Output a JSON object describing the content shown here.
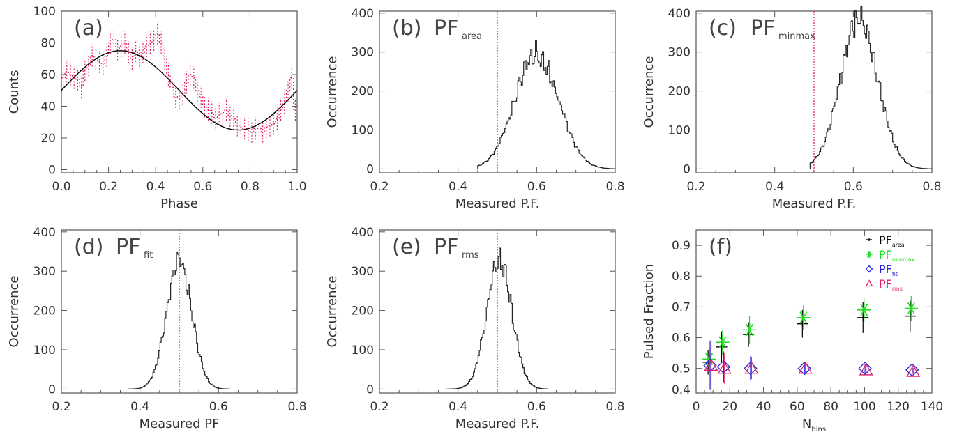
{
  "colors": {
    "data": "#e0205a",
    "fit": "#000000",
    "axis": "#555555",
    "green": "#22dd22",
    "blue": "#2222dd",
    "magenta": "#e0206a",
    "black": "#000000"
  },
  "chart_data": [
    {
      "id": "a",
      "type": "line",
      "label": "(a)",
      "xlabel": "Phase",
      "ylabel": "Counts",
      "xlim": [
        0.0,
        1.0
      ],
      "ylim": [
        -2,
        100
      ],
      "xticks": [
        "0.0",
        "0.2",
        "0.4",
        "0.6",
        "0.8",
        "1.0"
      ],
      "yticks": [
        "0",
        "20",
        "40",
        "60",
        "80",
        "100"
      ],
      "xtick_values": [
        0.0,
        0.2,
        0.4,
        0.6,
        0.8,
        1.0
      ],
      "ytick_values": [
        0,
        20,
        40,
        60,
        80,
        100
      ],
      "fit_curve": {
        "mean": 50,
        "amplitude": 25,
        "peak_phase": 0.25
      },
      "series": [
        {
          "style": "dotted-step",
          "values": [
            58,
            62,
            60,
            58,
            57,
            52,
            63,
            66,
            72,
            70,
            68,
            67,
            72,
            80,
            82,
            76,
            78,
            80,
            74,
            70,
            75,
            72,
            74,
            78,
            80,
            82,
            86,
            80,
            70,
            60,
            52,
            46,
            45,
            48,
            55,
            60,
            58,
            50,
            46,
            40,
            38,
            36,
            33,
            35,
            36,
            38,
            34,
            32,
            28,
            27,
            26,
            25,
            24,
            26,
            26,
            24,
            27,
            28,
            29,
            32,
            38,
            42,
            50,
            58,
            38
          ]
        }
      ]
    },
    {
      "id": "b",
      "type": "bar",
      "label": "(b)",
      "pf": "PF",
      "pf_sub": "area",
      "xlabel": "Measured P.F.",
      "ylabel": "Occurrence",
      "xlim": [
        0.2,
        0.8
      ],
      "ylim": [
        -10,
        405
      ],
      "xticks": [
        "0.2",
        "0.4",
        "0.6",
        "0.8"
      ],
      "xtick_values": [
        0.2,
        0.4,
        0.6,
        0.8
      ],
      "yticks": [
        "0",
        "100",
        "200",
        "300",
        "400"
      ],
      "ytick_values": [
        0,
        100,
        200,
        300,
        400
      ],
      "reference_line": 0.5,
      "hist": {
        "center": 0.6,
        "sigma": 0.055,
        "peak": 315,
        "left": 0.45,
        "right": 0.8
      }
    },
    {
      "id": "c",
      "type": "bar",
      "label": "(c)",
      "pf": "PF",
      "pf_sub": "minmax",
      "xlabel": "Measured P.F.",
      "ylabel": "Occurrence",
      "xlim": [
        0.2,
        0.8
      ],
      "ylim": [
        -10,
        405
      ],
      "xticks": [
        "0.2",
        "0.4",
        "0.6",
        "0.8"
      ],
      "xtick_values": [
        0.2,
        0.4,
        0.6,
        0.8
      ],
      "yticks": [
        "0",
        "100",
        "200",
        "300",
        "400"
      ],
      "ytick_values": [
        0,
        100,
        200,
        300,
        400
      ],
      "reference_line": 0.5,
      "hist": {
        "center": 0.615,
        "sigma": 0.048,
        "peak": 400,
        "left": 0.49,
        "right": 0.8
      }
    },
    {
      "id": "d",
      "type": "bar",
      "label": "(d)",
      "pf": "PF",
      "pf_sub": "fit",
      "xlabel": "Measured PF",
      "ylabel": "Occurrence",
      "xlim": [
        0.2,
        0.8
      ],
      "ylim": [
        -10,
        405
      ],
      "xticks": [
        "0.2",
        "0.4",
        "0.6",
        "0.8"
      ],
      "xtick_values": [
        0.2,
        0.4,
        0.6,
        0.8
      ],
      "yticks": [
        "0",
        "100",
        "200",
        "300",
        "400"
      ],
      "ytick_values": [
        0,
        100,
        200,
        300,
        400
      ],
      "reference_line": 0.5,
      "hist": {
        "center": 0.5,
        "sigma": 0.032,
        "peak": 345,
        "left": 0.37,
        "right": 0.63
      }
    },
    {
      "id": "e",
      "type": "bar",
      "label": "(e)",
      "pf": "PF",
      "pf_sub": "rms",
      "xlabel": "Measured P.F.",
      "ylabel": "Occurrence",
      "xlim": [
        0.2,
        0.8
      ],
      "ylim": [
        -10,
        405
      ],
      "xticks": [
        "0.2",
        "0.4",
        "0.6",
        "0.8"
      ],
      "xtick_values": [
        0.2,
        0.4,
        0.6,
        0.8
      ],
      "yticks": [
        "0",
        "100",
        "200",
        "300",
        "400"
      ],
      "ytick_values": [
        0,
        100,
        200,
        300,
        400
      ],
      "reference_line": 0.5,
      "hist": {
        "center": 0.505,
        "sigma": 0.032,
        "peak": 345,
        "left": 0.37,
        "right": 0.63
      }
    },
    {
      "id": "f",
      "type": "scatter",
      "label": "(f)",
      "xlabel": "N",
      "xlabel_sub": "bins",
      "ylabel": "Pulsed Fraction",
      "xlim": [
        0,
        140
      ],
      "ylim": [
        0.42,
        0.95
      ],
      "xticks": [
        "0",
        "20",
        "40",
        "60",
        "80",
        "100",
        "120",
        "140"
      ],
      "xtick_values": [
        0,
        20,
        40,
        60,
        80,
        100,
        120,
        140
      ],
      "yticks": [
        "0.4",
        "0.5",
        "0.6",
        "0.7",
        "0.8",
        "0.9"
      ],
      "ytick_values": [
        0.4,
        0.5,
        0.6,
        0.7,
        0.8,
        0.9
      ],
      "legend": [
        {
          "label": "PF",
          "sub": "area",
          "marker": "plus",
          "color": "#000000"
        },
        {
          "label": "PF",
          "sub": "minmax",
          "marker": "asterisk",
          "color": "#22dd22"
        },
        {
          "label": "PF",
          "sub": "fit",
          "marker": "diamond",
          "color": "#2222dd"
        },
        {
          "label": "PF",
          "sub": "rms",
          "marker": "triangle",
          "color": "#e0206a"
        }
      ],
      "x": [
        8,
        16,
        32,
        64,
        100,
        128
      ],
      "series": [
        {
          "name": "PF area",
          "marker": "plus",
          "values": [
            0.52,
            0.57,
            0.61,
            0.645,
            0.665,
            0.67
          ],
          "errors": [
            0.04,
            0.05,
            0.04,
            0.045,
            0.05,
            0.05
          ]
        },
        {
          "name": "PF minmax",
          "marker": "asterisk",
          "values": [
            0.53,
            0.585,
            0.625,
            0.665,
            0.69,
            0.695
          ],
          "errors": [
            0.035,
            0.04,
            0.045,
            0.04,
            0.04,
            0.04
          ]
        },
        {
          "name": "PF fit",
          "marker": "diamond",
          "values": [
            0.51,
            0.505,
            0.5,
            0.5,
            0.5,
            0.495
          ],
          "errors": [
            0.08,
            0.05,
            0.04,
            0.02,
            0.015,
            0.012
          ]
        },
        {
          "name": "PF rms",
          "marker": "triangle",
          "values": [
            0.51,
            0.5,
            0.5,
            0.5,
            0.495,
            0.49
          ],
          "errors": [
            0.085,
            0.05,
            0.035,
            0.02,
            0.015,
            0.012
          ]
        }
      ]
    }
  ]
}
